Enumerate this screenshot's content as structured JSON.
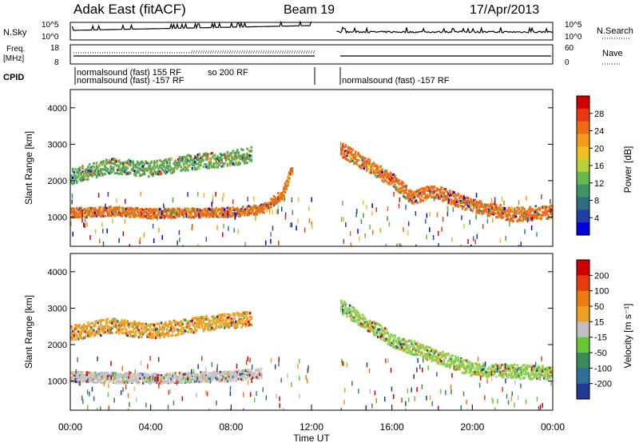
{
  "header": {
    "station": "Adak East (fitACF)",
    "beam": "Beam 19",
    "date": "17/Apr/2013"
  },
  "chart_data": [
    {
      "type": "line",
      "panel": "noise",
      "left_label": "N.Sky",
      "right_label": "N.Search",
      "left_ticks": [
        "10^5",
        "10^0"
      ],
      "right_ticks": [
        "10^5",
        "10^0"
      ],
      "scale": "log",
      "gap_utc": [
        "12:00",
        "13:15"
      ]
    },
    {
      "type": "line",
      "panel": "frequency",
      "left_label_lines": [
        "Freq.",
        "[MHz]"
      ],
      "right_label": "Nave",
      "left_ticks": [
        18,
        8
      ],
      "right_ticks": [
        60,
        0
      ],
      "freq_value_mhz": 11
    },
    {
      "type": "table",
      "panel": "cpid",
      "label": "CPID",
      "left_text": "normalsound (fast) -157 RF",
      "left_text_overlap": "normalsound (fast) 155 RF",
      "left_text_extra": "so 200 RF",
      "right_text": "normalsound (fast) -157 RF"
    },
    {
      "type": "heatmap",
      "panel": "power",
      "ylabel": "Slant Range [km]",
      "y_ticks": [
        1000,
        2000,
        3000,
        4000
      ],
      "ylim": [
        200,
        4500
      ],
      "colorbar_label": "Power [dB]",
      "colorbar_ticks": [
        4,
        8,
        12,
        16,
        20,
        24,
        28
      ],
      "colorbar_colors": [
        "#0000dd",
        "#1e3ea8",
        "#2e6f7e",
        "#3d9464",
        "#67b84f",
        "#b8d03a",
        "#f0c020",
        "#f59a1a",
        "#f06c14",
        "#e8380f",
        "#d10000"
      ],
      "bands": [
        {
          "name": "main",
          "color": "#f06c14",
          "points": [
            [
              "00:00",
              1100
            ],
            [
              "02:00",
              1150
            ],
            [
              "04:00",
              1080
            ],
            [
              "08:00",
              1120
            ],
            [
              "09:30",
              1200
            ],
            [
              "10:30",
              1600
            ],
            [
              "11:00",
              2300
            ]
          ]
        },
        {
          "name": "upper",
          "color": "#5aaa55",
          "points": [
            [
              "00:00",
              2100
            ],
            [
              "02:00",
              2400
            ],
            [
              "04:00",
              2300
            ],
            [
              "06:00",
              2500
            ],
            [
              "08:00",
              2600
            ],
            [
              "09:00",
              2700
            ]
          ]
        },
        {
          "name": "evening",
          "color": "#f06c14",
          "points": [
            [
              "13:15",
              2900
            ],
            [
              "16:00",
              2000
            ],
            [
              "17:00",
              1500
            ],
            [
              "18:00",
              1700
            ],
            [
              "20:00",
              1300
            ],
            [
              "22:00",
              1050
            ],
            [
              "24:00",
              1150
            ]
          ]
        }
      ]
    },
    {
      "type": "heatmap",
      "panel": "velocity",
      "ylabel": "Slant Range [km]",
      "xlabel": "Time UT",
      "x_ticks": [
        "00:00",
        "04:00",
        "08:00",
        "12:00",
        "16:00",
        "20:00",
        "00:00"
      ],
      "y_ticks": [
        1000,
        2000,
        3000,
        4000
      ],
      "ylim": [
        200,
        4500
      ],
      "colorbar_label": "Velocity [m s⁻¹]",
      "colorbar_ticks": [
        200,
        100,
        50,
        15,
        -15,
        -50,
        -100,
        -200
      ],
      "colorbar_colors": [
        "#1f3a93",
        "#2f6f98",
        "#3a8a5a",
        "#68c83a",
        "#c0c0c0",
        "#f0a020",
        "#ef7a10",
        "#e83a0a",
        "#d10000"
      ],
      "bands": [
        {
          "name": "ground",
          "color": "#c4c4c4",
          "points": [
            [
              "00:00",
              1100
            ],
            [
              "04:00",
              1050
            ],
            [
              "08:00",
              1120
            ],
            [
              "09:30",
              1200
            ]
          ]
        },
        {
          "name": "upper",
          "color": "#f0a020",
          "points": [
            [
              "00:00",
              2300
            ],
            [
              "02:00",
              2500
            ],
            [
              "04:00",
              2350
            ],
            [
              "07:00",
              2600
            ],
            [
              "09:00",
              2700
            ]
          ]
        },
        {
          "name": "evening",
          "color": "#8ed34f",
          "points": [
            [
              "13:15",
              3100
            ],
            [
              "16:00",
              2100
            ],
            [
              "18:00",
              1700
            ],
            [
              "20:00",
              1300
            ],
            [
              "24:00",
              1200
            ]
          ]
        }
      ]
    }
  ]
}
